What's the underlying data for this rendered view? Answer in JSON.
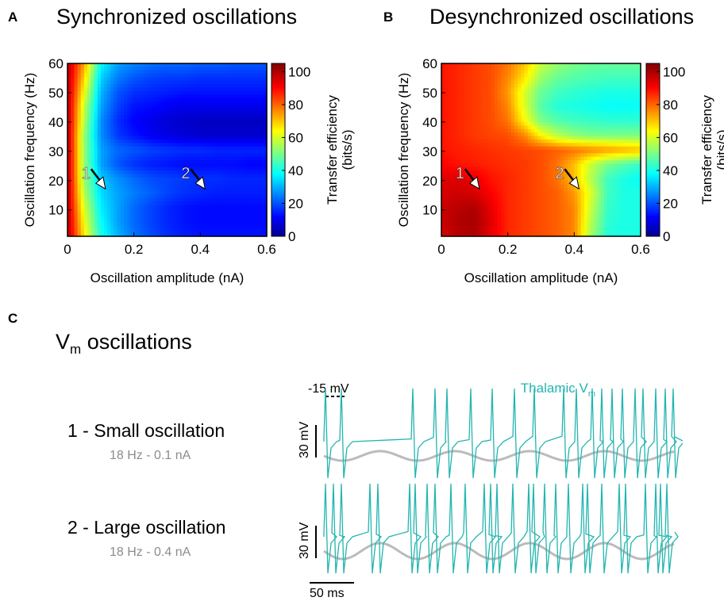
{
  "panels": {
    "A": {
      "letter": "A",
      "title": "Synchronized oscillations"
    },
    "B": {
      "letter": "B",
      "title": "Desynchronized oscillations"
    },
    "C": {
      "letter": "C",
      "title_main": "V",
      "title_sub": "m",
      "title_rest": " oscillations"
    }
  },
  "heatmap_axes": {
    "xlabel": "Oscillation amplitude (nA)",
    "ylabel": "Oscillation frequency (Hz)",
    "x_ticks": [
      "0",
      "0.2",
      "0.4",
      "0.6"
    ],
    "y_ticks": [
      "10",
      "20",
      "30",
      "40",
      "50",
      "60"
    ],
    "colorbar_label_line1": "Transfer efficiency",
    "colorbar_label_line2": "(bits/s)",
    "colorbar_ticks": [
      "0",
      "20",
      "40",
      "60",
      "80",
      "100"
    ],
    "marker_1": "1",
    "marker_2": "2"
  },
  "traces": {
    "legend": "Thalamic V",
    "legend_sub": "m",
    "spike_label": "-15 mV",
    "scale_v": "30 mV",
    "scale_t": "50 ms",
    "trace_color": "#22b5b0",
    "sine_color": "#bbbbbb",
    "row1_label": "1 - Small oscillation",
    "row1_sub": "18 Hz - 0.1 nA",
    "row2_label": "2 - Large oscillation",
    "row2_sub": "18 Hz - 0.4 nA"
  },
  "chart_data": [
    {
      "type": "heatmap",
      "title": "Synchronized oscillations",
      "xlabel": "Oscillation amplitude (nA)",
      "ylabel": "Oscillation frequency (Hz)",
      "xlim": [
        0,
        0.6
      ],
      "ylim": [
        1,
        60
      ],
      "clim": [
        0,
        105
      ],
      "colormap": "jet",
      "x": [
        0,
        0.05,
        0.1,
        0.15,
        0.2,
        0.25,
        0.3,
        0.35,
        0.4,
        0.45,
        0.5,
        0.55,
        0.6
      ],
      "y": [
        60,
        55,
        50,
        45,
        40,
        35,
        30,
        25,
        20,
        15,
        10,
        5,
        1
      ],
      "z": [
        [
          100,
          75,
          40,
          30,
          27,
          25,
          24,
          24,
          23,
          23,
          22,
          22,
          22
        ],
        [
          100,
          70,
          35,
          26,
          22,
          20,
          19,
          19,
          18,
          18,
          18,
          18,
          18
        ],
        [
          100,
          65,
          32,
          22,
          18,
          17,
          16,
          15,
          15,
          15,
          15,
          15,
          15
        ],
        [
          100,
          60,
          30,
          20,
          15,
          14,
          12,
          11,
          11,
          11,
          11,
          11,
          11
        ],
        [
          100,
          58,
          28,
          18,
          13,
          11,
          9,
          8,
          7,
          7,
          7,
          7,
          7
        ],
        [
          100,
          55,
          28,
          19,
          15,
          12,
          10,
          9,
          8,
          8,
          8,
          8,
          8
        ],
        [
          100,
          55,
          30,
          24,
          22,
          20,
          19,
          18,
          18,
          17,
          17,
          17,
          17
        ],
        [
          100,
          55,
          30,
          22,
          18,
          16,
          15,
          14,
          14,
          14,
          14,
          13,
          13
        ],
        [
          100,
          56,
          34,
          28,
          24,
          21,
          20,
          19,
          18,
          18,
          17,
          17,
          17
        ],
        [
          100,
          58,
          36,
          30,
          26,
          23,
          20,
          18,
          17,
          16,
          16,
          16,
          16
        ],
        [
          100,
          62,
          38,
          30,
          24,
          20,
          17,
          15,
          14,
          14,
          14,
          14,
          14
        ],
        [
          100,
          65,
          40,
          30,
          24,
          20,
          17,
          15,
          14,
          14,
          14,
          14,
          14
        ],
        [
          100,
          68,
          42,
          32,
          25,
          21,
          18,
          16,
          15,
          15,
          15,
          15,
          15
        ]
      ],
      "annotations": [
        {
          "label": "1",
          "x": 0.1,
          "y": 18
        },
        {
          "label": "2",
          "x": 0.4,
          "y": 18
        }
      ]
    },
    {
      "type": "heatmap",
      "title": "Desynchronized oscillations",
      "xlabel": "Oscillation amplitude (nA)",
      "ylabel": "Oscillation frequency (Hz)",
      "xlim": [
        0,
        0.6
      ],
      "ylim": [
        1,
        60
      ],
      "clim": [
        0,
        105
      ],
      "colormap": "jet",
      "x": [
        0,
        0.05,
        0.1,
        0.15,
        0.2,
        0.25,
        0.3,
        0.35,
        0.4,
        0.45,
        0.5,
        0.55,
        0.6
      ],
      "y": [
        60,
        55,
        50,
        45,
        40,
        35,
        30,
        25,
        20,
        15,
        10,
        5,
        1
      ],
      "z": [
        [
          90,
          88,
          86,
          84,
          80,
          72,
          60,
          55,
          52,
          50,
          50,
          50,
          50
        ],
        [
          90,
          88,
          86,
          84,
          78,
          68,
          55,
          50,
          48,
          47,
          46,
          46,
          46
        ],
        [
          90,
          88,
          86,
          84,
          76,
          62,
          50,
          46,
          44,
          43,
          42,
          42,
          42
        ],
        [
          90,
          88,
          86,
          84,
          78,
          62,
          48,
          43,
          42,
          41,
          40,
          40,
          40
        ],
        [
          90,
          88,
          86,
          84,
          80,
          66,
          52,
          48,
          46,
          45,
          44,
          44,
          44
        ],
        [
          90,
          88,
          86,
          85,
          84,
          78,
          66,
          58,
          54,
          52,
          52,
          52,
          52
        ],
        [
          90,
          89,
          88,
          87,
          86,
          85,
          84,
          82,
          80,
          78,
          76,
          74,
          72
        ],
        [
          92,
          90,
          89,
          88,
          87,
          86,
          84,
          80,
          72,
          60,
          52,
          48,
          45
        ],
        [
          95,
          95,
          94,
          90,
          88,
          86,
          84,
          80,
          72,
          58,
          46,
          42,
          40
        ],
        [
          96,
          97,
          96,
          92,
          88,
          86,
          84,
          82,
          76,
          62,
          46,
          42,
          42
        ],
        [
          97,
          99,
          100,
          94,
          88,
          86,
          84,
          82,
          78,
          60,
          45,
          42,
          42
        ],
        [
          97,
          100,
          101,
          95,
          88,
          86,
          84,
          82,
          78,
          58,
          44,
          42,
          42
        ],
        [
          96,
          99,
          100,
          94,
          88,
          86,
          84,
          82,
          78,
          56,
          43,
          42,
          42
        ]
      ],
      "annotations": [
        {
          "label": "1",
          "x": 0.1,
          "y": 18
        },
        {
          "label": "2",
          "x": 0.4,
          "y": 18
        }
      ]
    },
    {
      "type": "line",
      "title": "",
      "series": [
        {
          "name": "Thalamic Vm",
          "x": [
            0,
            20,
            55,
            85,
            120,
            150,
            175,
            190,
            205,
            230,
            250,
            275,
            300,
            320,
            335,
            345,
            360,
            375,
            380,
            400,
            420,
            435
          ],
          "values": [
            -15,
            -15,
            -60,
            -62,
            -55,
            -15,
            -15,
            -58,
            -15,
            -15,
            -15,
            -55,
            -15,
            -15,
            -15,
            -15,
            -15,
            -15,
            -15,
            -15,
            -15,
            -50
          ]
        },
        {
          "name": "oscillation",
          "x": [
            0,
            440
          ],
          "values": [
            -68,
            -68
          ]
        }
      ],
      "annotations": [
        "1 - Small oscillation",
        "18 Hz - 0.1 nA"
      ]
    },
    {
      "type": "line",
      "title": "",
      "series": [
        {
          "name": "Thalamic Vm",
          "x": [
            0,
            8,
            20,
            65,
            75,
            105,
            110,
            125,
            135,
            155,
            170,
            195,
            205,
            210,
            230,
            250,
            255,
            265,
            280,
            300,
            320,
            325,
            345,
            365,
            375,
            400,
            410,
            415,
            425
          ],
          "values": [
            -15,
            -15,
            -15,
            -15,
            -15,
            -15,
            -15,
            -15,
            -15,
            -15,
            -15,
            -15,
            -15,
            -15,
            -15,
            -15,
            -15,
            -15,
            -15,
            -15,
            -15,
            -15,
            -15,
            -15,
            -15,
            -15,
            -15,
            -15,
            -15
          ]
        },
        {
          "name": "oscillation",
          "x": [
            0,
            440
          ],
          "values": [
            -68,
            -68
          ]
        }
      ],
      "annotations": [
        "2 - Large oscillation",
        "18 Hz - 0.4 nA"
      ]
    }
  ]
}
